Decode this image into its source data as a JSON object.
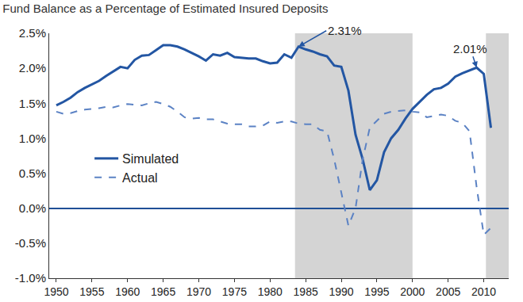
{
  "chart_data": {
    "type": "line",
    "title": "Fund Balance as a Percentage of Estimated Insured Deposits",
    "x": [
      1950,
      1951,
      1952,
      1953,
      1954,
      1955,
      1956,
      1957,
      1958,
      1959,
      1960,
      1961,
      1962,
      1963,
      1964,
      1965,
      1966,
      1967,
      1968,
      1969,
      1970,
      1971,
      1972,
      1973,
      1974,
      1975,
      1976,
      1977,
      1978,
      1979,
      1980,
      1981,
      1982,
      1983,
      1984,
      1985,
      1986,
      1987,
      1988,
      1989,
      1990,
      1991,
      1992,
      1993,
      1994,
      1995,
      1996,
      1997,
      1998,
      1999,
      2000,
      2001,
      2002,
      2003,
      2004,
      2005,
      2006,
      2007,
      2008,
      2009,
      2010,
      2011
    ],
    "series": [
      {
        "name": "Simulated",
        "color": "#2356a3",
        "line_style": "solid",
        "values": [
          1.47,
          1.52,
          1.58,
          1.66,
          1.72,
          1.77,
          1.82,
          1.89,
          1.96,
          2.02,
          2.0,
          2.12,
          2.18,
          2.19,
          2.26,
          2.33,
          2.33,
          2.31,
          2.27,
          2.22,
          2.17,
          2.11,
          2.2,
          2.18,
          2.22,
          2.16,
          2.15,
          2.14,
          2.14,
          2.1,
          2.07,
          2.08,
          2.2,
          2.15,
          2.31,
          2.27,
          2.24,
          2.2,
          2.17,
          2.04,
          2.02,
          1.68,
          1.05,
          0.7,
          0.26,
          0.4,
          0.8,
          1.0,
          1.12,
          1.28,
          1.42,
          1.52,
          1.62,
          1.7,
          1.72,
          1.78,
          1.88,
          1.93,
          1.97,
          2.01,
          1.92,
          1.15
        ]
      },
      {
        "name": "Actual",
        "color": "#5b82c4",
        "line_style": "dash",
        "values": [
          1.38,
          1.35,
          1.36,
          1.39,
          1.41,
          1.42,
          1.43,
          1.45,
          1.44,
          1.47,
          1.49,
          1.48,
          1.47,
          1.5,
          1.52,
          1.49,
          1.45,
          1.38,
          1.3,
          1.28,
          1.29,
          1.27,
          1.27,
          1.24,
          1.21,
          1.2,
          1.2,
          1.17,
          1.17,
          1.18,
          1.24,
          1.22,
          1.24,
          1.24,
          1.21,
          1.2,
          1.2,
          1.12,
          1.1,
          0.7,
          0.21,
          -0.25,
          0.0,
          0.7,
          1.15,
          1.25,
          1.35,
          1.38,
          1.39,
          1.4,
          1.38,
          1.37,
          1.3,
          1.32,
          1.34,
          1.32,
          1.25,
          1.22,
          1.1,
          0.3,
          -0.38,
          -0.28
        ]
      }
    ],
    "xlim": [
      1949,
      2013.5
    ],
    "xticks": [
      1950,
      1955,
      1960,
      1965,
      1970,
      1975,
      1980,
      1985,
      1990,
      1995,
      2000,
      2005,
      2010
    ],
    "ylim": [
      -1,
      2.5
    ],
    "yticks": [
      {
        "value": -1,
        "label": "-1.0%"
      },
      {
        "value": -0.5,
        "label": "-0.5%"
      },
      {
        "value": 0,
        "label": "0.0%"
      },
      {
        "value": 0.5,
        "label": "0.5%"
      },
      {
        "value": 1,
        "label": "1.0%"
      },
      {
        "value": 1.5,
        "label": "1.5%"
      },
      {
        "value": 2,
        "label": "2.0%"
      },
      {
        "value": 2.5,
        "label": "2.5%"
      }
    ],
    "shaded_periods": [
      [
        1983.5,
        2000
      ],
      [
        2010.3,
        2013.5
      ]
    ],
    "annotations": [
      {
        "text": "2.31%",
        "x": 1984,
        "y": 2.31
      },
      {
        "text": "2.01%",
        "x": 2009,
        "y": 2.01
      }
    ],
    "grid": false,
    "legend": "left"
  }
}
